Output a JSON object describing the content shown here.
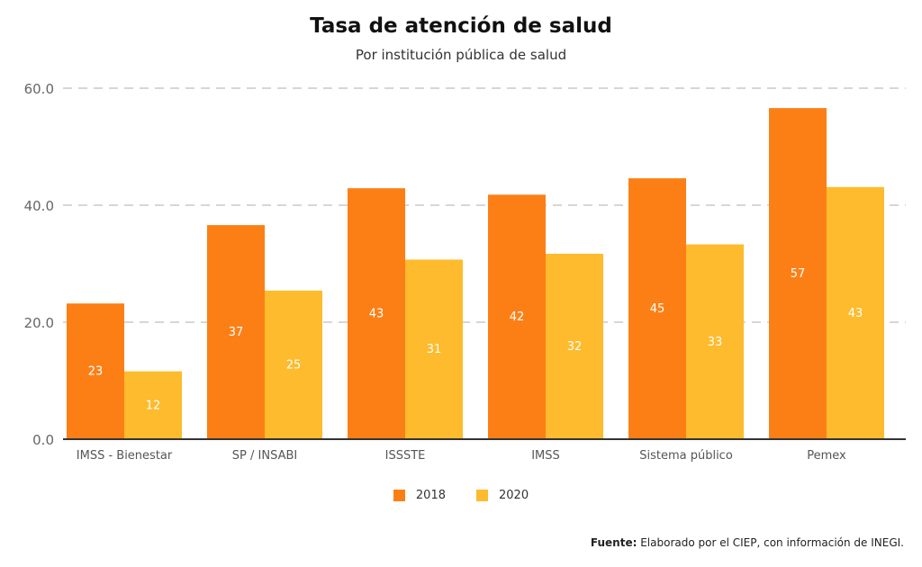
{
  "title": "Tasa de atención de salud",
  "subtitle": "Por institución pública de salud",
  "source": {
    "label": "Fuente:",
    "text": "Elaborado por el CIEP, con información de INEGI."
  },
  "colors": {
    "s2018": "#fc7f16",
    "s2020": "#fdbb2d",
    "grid": "#d6d6d6",
    "axis": "#333333"
  },
  "chart_data": {
    "type": "bar",
    "title": "Tasa de atención de salud",
    "subtitle": "Por institución pública de salud",
    "categories": [
      "IMSS - Bienestar",
      "SP / INSABI",
      "ISSSTE",
      "IMSS",
      "Sistema público",
      "Pemex"
    ],
    "series": [
      {
        "name": "2018",
        "values": [
          23.2,
          36.6,
          42.9,
          41.8,
          44.6,
          56.6
        ],
        "labels": [
          "23",
          "37",
          "43",
          "42",
          "45",
          "57"
        ]
      },
      {
        "name": "2020",
        "values": [
          11.6,
          25.4,
          30.7,
          31.7,
          33.3,
          43.1
        ],
        "labels": [
          "12",
          "25",
          "31",
          "32",
          "33",
          "43"
        ]
      }
    ],
    "yticks": [
      "0.0",
      "20.0",
      "40.0",
      "60.0"
    ],
    "ylim": [
      0,
      60
    ],
    "grid": true,
    "legend_position": "bottom"
  }
}
